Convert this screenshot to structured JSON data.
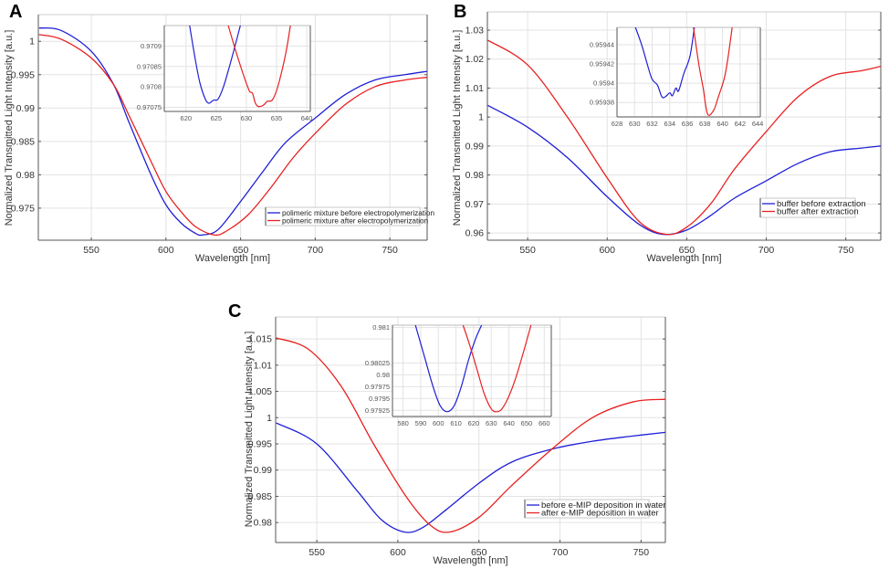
{
  "chart_data": [
    {
      "panel": "A",
      "type": "line",
      "title": "",
      "xlabel": "Wavelength [nm]",
      "ylabel": "Normalized Transmitted Light Intensity [a.u.]",
      "xlim": [
        514.5,
        775
      ],
      "ylim": [
        0.9702,
        1.004
      ],
      "xticks": [
        550,
        600,
        650,
        700,
        750
      ],
      "xtick_labels": [
        "550",
        "600",
        "650",
        "700",
        "750"
      ],
      "yticks": [
        0.975,
        0.98,
        0.985,
        0.99,
        0.995,
        1
      ],
      "ytick_labels": [
        "0.975",
        "0.98",
        "0.985",
        "0.99",
        "0.995",
        "1"
      ],
      "grid": true,
      "legend_position": "bottom-right",
      "series": [
        {
          "name": "polimeric mixture before electropolymerization",
          "color": "#1f1fd6",
          "x": [
            515,
            530,
            550,
            565,
            575,
            590,
            600,
            610,
            620,
            625,
            635,
            650,
            665,
            680,
            700,
            720,
            740,
            760,
            775
          ],
          "y": [
            1.002,
            1.0016,
            0.9985,
            0.9935,
            0.988,
            0.98,
            0.9755,
            0.9728,
            0.9712,
            0.971,
            0.9718,
            0.976,
            0.9805,
            0.9848,
            0.9885,
            0.992,
            0.9942,
            0.995,
            0.9955
          ]
        },
        {
          "name": "polimeric mixture after electropolymerization",
          "color": "#e82020",
          "x": [
            515,
            530,
            550,
            565,
            575,
            590,
            600,
            610,
            620,
            632,
            640,
            655,
            670,
            685,
            700,
            720,
            740,
            760,
            775
          ],
          "y": [
            1.001,
            1.0003,
            0.9975,
            0.9935,
            0.989,
            0.982,
            0.9775,
            0.9745,
            0.9722,
            0.971,
            0.9715,
            0.974,
            0.978,
            0.9825,
            0.9862,
            0.9905,
            0.9932,
            0.9942,
            0.9946
          ]
        }
      ],
      "inset": {
        "xlim": [
          616.4,
          640.6
        ],
        "ylim": [
          0.97074,
          0.97095
        ],
        "xticks": [
          620,
          625,
          630,
          635,
          640
        ],
        "xtick_labels": [
          "620",
          "625",
          "630",
          "635",
          "640"
        ],
        "yticks": [
          0.97075,
          0.9708,
          0.97085,
          0.9709
        ],
        "ytick_labels": [
          "0.97075",
          "0.9708",
          "0.97085",
          "0.9709"
        ],
        "series": [
          {
            "name": "before",
            "color": "#1f1fd6",
            "x": [
              620.6,
              621.5,
              622.3,
              623.2,
              623.8,
              624.3,
              624.7,
              625.3,
              626.2,
              627.2,
              628.3,
              629.0
            ],
            "y": [
              0.97095,
              0.97087,
              0.97081,
              0.97077,
              0.97076,
              0.970765,
              0.970768,
              0.97077,
              0.9708,
              0.97085,
              0.97091,
              0.97095
            ]
          },
          {
            "name": "after",
            "color": "#e82020",
            "x": [
              627.0,
              628.2,
              629.5,
              630.5,
              631.0,
              631.5,
              632.0,
              632.8,
              633.5,
              634.3,
              635.2,
              636.5,
              637.3
            ],
            "y": [
              0.97095,
              0.97089,
              0.97083,
              0.97079,
              0.970785,
              0.97076,
              0.970752,
              0.970755,
              0.970765,
              0.970768,
              0.9708,
              0.97088,
              0.97095
            ]
          }
        ]
      }
    },
    {
      "panel": "B",
      "type": "line",
      "title": "",
      "xlabel": "Wavelength [nm]",
      "ylabel": "Normalized Transmitted Light Intensity [a.u.]",
      "xlim": [
        524.7,
        772
      ],
      "ylim": [
        0.9575,
        1.0363
      ],
      "xticks": [
        550,
        600,
        650,
        700,
        750
      ],
      "xtick_labels": [
        "550",
        "600",
        "650",
        "700",
        "750"
      ],
      "yticks": [
        0.96,
        0.97,
        0.98,
        0.99,
        1,
        1.01,
        1.02,
        1.03
      ],
      "ytick_labels": [
        "0.96",
        "0.97",
        "0.98",
        "0.99",
        "1",
        "1.01",
        "1.02",
        "1.03"
      ],
      "grid": true,
      "legend_position": "bottom-right",
      "series": [
        {
          "name": "buffer before extraction",
          "color": "#1f1fd6",
          "x": [
            525,
            550,
            575,
            600,
            620,
            635,
            650,
            665,
            680,
            700,
            720,
            740,
            760,
            772
          ],
          "y": [
            1.004,
            0.9965,
            0.986,
            0.9725,
            0.963,
            0.9595,
            0.961,
            0.966,
            0.972,
            0.978,
            0.984,
            0.988,
            0.9893,
            0.99
          ]
        },
        {
          "name": "buffer after extraction",
          "color": "#e82020",
          "x": [
            525,
            550,
            575,
            600,
            620,
            637,
            650,
            665,
            680,
            700,
            720,
            740,
            760,
            772
          ],
          "y": [
            1.0265,
            1.018,
            1.0,
            0.979,
            0.964,
            0.9595,
            0.962,
            0.97,
            0.982,
            0.995,
            1.007,
            1.014,
            1.016,
            1.0175
          ]
        }
      ],
      "inset": {
        "xlim": [
          628,
          644.3
        ],
        "ylim": [
          0.959365,
          0.959458
        ],
        "xticks": [
          628,
          630,
          632,
          634,
          636,
          638,
          640,
          642,
          644
        ],
        "xtick_labels": [
          "628",
          "630",
          "632",
          "634",
          "636",
          "638",
          "640",
          "642",
          "644"
        ],
        "yticks": [
          0.95938,
          0.9594,
          0.95942,
          0.95944
        ],
        "ytick_labels": [
          "0.95938",
          "0.9594",
          "0.95942",
          "0.95944"
        ],
        "series": [
          {
            "name": "before",
            "color": "#1f1fd6",
            "x": [
              630.1,
              630.8,
              631.5,
              632.0,
              632.6,
              633.1,
              633.5,
              634.0,
              634.3,
              634.7,
              635.0,
              635.6,
              636.3,
              636.8
            ],
            "y": [
              0.959458,
              0.95944,
              0.959418,
              0.959404,
              0.959398,
              0.959386,
              0.959386,
              0.95939,
              0.959387,
              0.959395,
              0.959392,
              0.95941,
              0.959428,
              0.959458
            ]
          },
          {
            "name": "after",
            "color": "#e82020",
            "x": [
              636.7,
              637.3,
              637.8,
              638.3,
              639.0,
              639.5,
              640.2,
              640.6,
              641.1
            ],
            "y": [
              0.959458,
              0.95942,
              0.959395,
              0.959368,
              0.959372,
              0.959385,
              0.959405,
              0.959425,
              0.959458
            ]
          }
        ]
      }
    },
    {
      "panel": "C",
      "type": "line",
      "title": "",
      "xlabel": "Wavelength [nm]",
      "ylabel": "Normalized Transmitted Light Intensity [a.u.]",
      "xlim": [
        524.6,
        765
      ],
      "ylim": [
        0.9762,
        1.0192
      ],
      "xticks": [
        550,
        600,
        650,
        700,
        750
      ],
      "xtick_labels": [
        "550",
        "600",
        "650",
        "700",
        "750"
      ],
      "yticks": [
        0.98,
        0.985,
        0.99,
        0.995,
        1,
        1.005,
        1.01,
        1.015
      ],
      "ytick_labels": [
        "0.98",
        "0.985",
        "0.99",
        "0.995",
        "1",
        "1.005",
        "1.01",
        "1.015"
      ],
      "grid": true,
      "legend_position": "bottom-right",
      "series": [
        {
          "name": "before e-MIP deposition in water",
          "color": "#1f1fd6",
          "x": [
            525,
            550,
            575,
            590,
            604,
            615,
            630,
            650,
            670,
            695,
            720,
            745,
            765
          ],
          "y": [
            0.999,
            0.995,
            0.986,
            0.9805,
            0.9782,
            0.979,
            0.9825,
            0.9875,
            0.9915,
            0.994,
            0.9955,
            0.9965,
            0.9972
          ]
        },
        {
          "name": "after e-MIP deposition in water",
          "color": "#e82020",
          "x": [
            525,
            545,
            565,
            585,
            605,
            620,
            632,
            650,
            670,
            695,
            720,
            745,
            765
          ],
          "y": [
            1.0152,
            1.013,
            1.006,
            0.995,
            0.985,
            0.9795,
            0.9782,
            0.981,
            0.987,
            0.994,
            1.0,
            1.003,
            1.0035
          ]
        }
      ],
      "inset": {
        "xlim": [
          574,
          664
        ],
        "ylim": [
          0.97912,
          0.98105
        ],
        "xticks": [
          580,
          590,
          600,
          610,
          620,
          630,
          640,
          650,
          660
        ],
        "xtick_labels": [
          "580",
          "590",
          "600",
          "610",
          "620",
          "630",
          "640",
          "650",
          "660"
        ],
        "yticks": [
          0.97925,
          0.9795,
          0.97975,
          0.98,
          0.98025,
          0.981
        ],
        "ytick_labels": [
          "0.97925",
          "0.9795",
          "0.97975",
          "0.98",
          "0.98025",
          "0.981"
        ],
        "series": [
          {
            "name": "before",
            "color": "#1f1fd6",
            "x": [
              587,
              592,
              597,
              601,
              605,
              609,
              613,
              617,
              621,
              624.5
            ],
            "y": [
              0.98105,
              0.9804,
              0.97975,
              0.97935,
              0.97922,
              0.97935,
              0.97975,
              0.9803,
              0.98075,
              0.98105
            ]
          },
          {
            "name": "after",
            "color": "#e82020",
            "x": [
              614,
              618,
              622,
              626,
              630,
              633,
              636,
              640,
              644,
              648,
              652.5
            ],
            "y": [
              0.98105,
              0.9806,
              0.9801,
              0.9796,
              0.97928,
              0.97922,
              0.97928,
              0.97955,
              0.97995,
              0.98045,
              0.98105
            ]
          }
        ]
      }
    }
  ],
  "panels": [
    {
      "letter": "A",
      "legend": [
        "polimeric mixture before electropolymerization",
        "polimeric mixture after electropolymerization"
      ]
    },
    {
      "letter": "B",
      "legend": [
        "buffer before extraction",
        "buffer after extraction"
      ]
    },
    {
      "letter": "C",
      "legend": [
        "before e-MIP deposition in water",
        "after e-MIP deposition in water"
      ]
    }
  ]
}
